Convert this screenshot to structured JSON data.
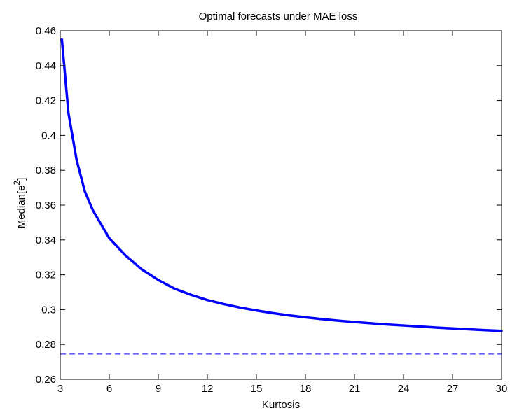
{
  "chart_data": {
    "type": "line",
    "title": "Optimal forecasts under MAE loss",
    "xlabel": "Kurtosis",
    "ylabel": {
      "base": "Median[e",
      "superscript": "2",
      "close": "]"
    },
    "xlim": [
      3,
      30
    ],
    "ylim": [
      0.26,
      0.46
    ],
    "xticks": [
      3,
      6,
      9,
      12,
      15,
      18,
      21,
      24,
      27,
      30
    ],
    "xtick_labels": [
      "3",
      "6",
      "9",
      "12",
      "15",
      "18",
      "21",
      "24",
      "27",
      "30"
    ],
    "yticks": [
      0.26,
      0.28,
      0.3,
      0.32,
      0.34,
      0.36,
      0.38,
      0.4,
      0.42,
      0.44,
      0.46
    ],
    "ytick_labels": [
      "0.26",
      "0.28",
      "0.3",
      "0.32",
      "0.34",
      "0.36",
      "0.38",
      "0.4",
      "0.42",
      "0.44",
      "0.46"
    ],
    "grid": false,
    "legend": "none",
    "series": [
      {
        "style": "solid",
        "color": "#0000ff",
        "x": [
          3.1,
          3.5,
          4,
          4.5,
          5,
          6,
          7,
          8,
          9,
          10,
          11,
          12,
          13,
          14,
          15,
          16,
          17,
          18,
          19,
          20,
          21,
          22,
          23,
          24,
          25,
          26,
          27,
          28,
          29,
          30
        ],
        "y": [
          0.455,
          0.413,
          0.386,
          0.368,
          0.357,
          0.341,
          0.331,
          0.323,
          0.317,
          0.312,
          0.3085,
          0.3055,
          0.3032,
          0.3012,
          0.2995,
          0.298,
          0.2967,
          0.2956,
          0.2946,
          0.2937,
          0.2929,
          0.2922,
          0.2915,
          0.2909,
          0.2903,
          0.2897,
          0.2892,
          0.2887,
          0.2882,
          0.2878
        ]
      },
      {
        "style": "dashed",
        "color": "#0000ff",
        "x": [
          3,
          30
        ],
        "y": [
          0.2745,
          0.2745
        ]
      }
    ]
  }
}
